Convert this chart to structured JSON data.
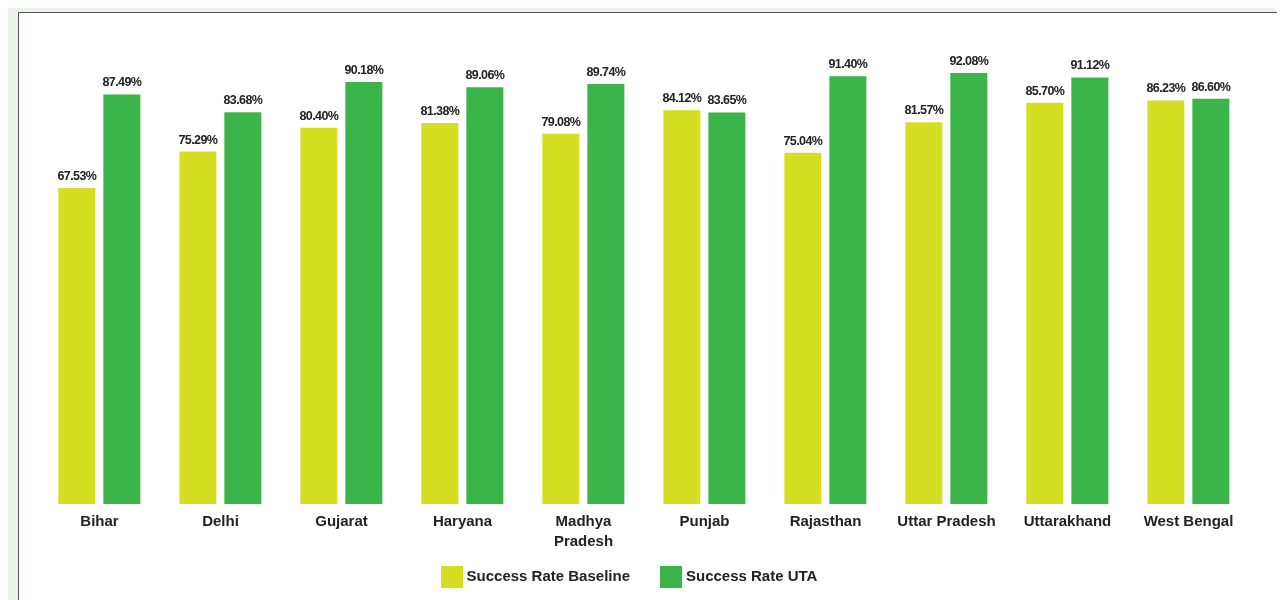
{
  "chart_data": {
    "type": "bar",
    "categories": [
      "Bihar",
      "Delhi",
      "Gujarat",
      "Haryana",
      "Madhya Pradesh",
      "Punjab",
      "Rajasthan",
      "Uttar Pradesh",
      "Uttarakhand",
      "West Bengal"
    ],
    "series": [
      {
        "name": "Success Rate Baseline",
        "color": "#d5df22",
        "values": [
          67.53,
          75.29,
          80.4,
          81.38,
          79.08,
          84.12,
          75.04,
          81.57,
          85.7,
          86.23
        ],
        "value_labels": [
          "67.53%",
          "75.29%",
          "80.40%",
          "81.38%",
          "79.08%",
          "84.12%",
          "75.04%",
          "81.57%",
          "85.70%",
          "86.23%"
        ]
      },
      {
        "name": "Success Rate UTA",
        "color": "#3bb54a",
        "values": [
          87.49,
          83.68,
          90.18,
          89.06,
          89.74,
          83.65,
          91.4,
          92.08,
          91.12,
          86.6
        ],
        "value_labels": [
          "87.49%",
          "83.68%",
          "90.18%",
          "89.06%",
          "89.74%",
          "83.65%",
          "91.40%",
          "92.08%",
          "91.12%",
          "86.60%"
        ]
      }
    ],
    "legend": "bottom",
    "grid": false
  }
}
